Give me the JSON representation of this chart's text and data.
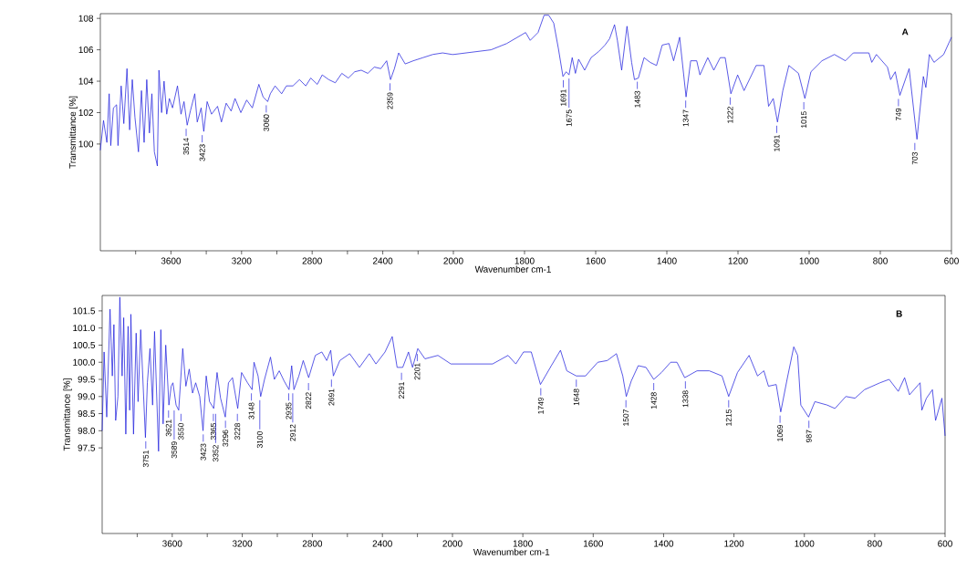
{
  "chart_data": [
    {
      "type": "line",
      "ylabel": "Transmittance [%]",
      "xlim": [
        4000,
        2000
      ],
      "ylim": [
        93.2,
        108.3
      ],
      "xticks": [
        {
          "value": 3800,
          "label": null
        },
        3600,
        {
          "value": 3400,
          "label": null
        },
        3200,
        {
          "value": 3000,
          "label": null
        },
        2800,
        {
          "value": 2600,
          "label": null
        },
        2400,
        {
          "value": 2200,
          "label": null
        }
      ],
      "yticks": [
        100,
        102,
        104,
        106,
        108
      ],
      "x": [
        4000,
        3982,
        3963,
        3950,
        3941,
        3926,
        3908,
        3900,
        3882,
        3867,
        3849,
        3834,
        3819,
        3804,
        3784,
        3767,
        3752,
        3737,
        3722,
        3708,
        3694,
        3677,
        3668,
        3653,
        3639,
        3624,
        3609,
        3591,
        3563,
        3543,
        3526,
        3508,
        3490,
        3465,
        3451,
        3429,
        3414,
        3395,
        3370,
        3336,
        3314,
        3287,
        3259,
        3237,
        3204,
        3171,
        3139,
        3102,
        3078,
        3052,
        3037,
        3010,
        2973,
        2946,
        2909,
        2872,
        2836,
        2808,
        2771,
        2743,
        2706,
        2669,
        2632,
        2595,
        2559,
        2522,
        2485,
        2448,
        2411,
        2378,
        2356,
        2334,
        2310,
        2273,
        2227,
        2172,
        2117,
        2061,
        2006,
        2000
      ],
      "series": [
        {
          "color": "#2222dd",
          "values": [
            99.6,
            101.5,
            100.1,
            103.2,
            99.9,
            102.3,
            102.5,
            99.9,
            103.7,
            101.3,
            104.8,
            100.9,
            104.1,
            101.7,
            99.5,
            103.4,
            100.1,
            104.1,
            100.7,
            103.2,
            99.5,
            98.6,
            104.7,
            102.0,
            104.0,
            101.9,
            102.9,
            102.3,
            103.7,
            101.9,
            102.7,
            101.2,
            102.1,
            103.2,
            101.4,
            102.3,
            100.8,
            102.7,
            101.9,
            102.4,
            101.4,
            102.6,
            102.1,
            102.9,
            102.0,
            102.8,
            102.3,
            103.8,
            103.0,
            102.7,
            103.2,
            103.7,
            103.2,
            103.7,
            103.7,
            104.1,
            103.7,
            104.2,
            103.8,
            104.4,
            104.1,
            103.9,
            104.5,
            104.2,
            104.6,
            104.7,
            104.5,
            104.9,
            104.8,
            105.3,
            104.1,
            104.8,
            105.8,
            105.1,
            105.3,
            105.5,
            105.7,
            105.8,
            105.7,
            105.7
          ]
        }
      ],
      "annotations": [
        {
          "text": "3514",
          "x": 3514,
          "y": 101.2
        },
        {
          "text": "3423",
          "x": 3423,
          "y": 100.8
        },
        {
          "text": "3060",
          "x": 3060,
          "y": 102.7
        },
        {
          "text": "2359",
          "x": 2359,
          "y": 104.1
        }
      ]
    },
    {
      "type": "line",
      "xlabel": "Wavenumber cm-1",
      "tick_labels": "x",
      "xlim": [
        2000,
        600
      ],
      "ylim": [
        93.2,
        108.3
      ],
      "xticks": [
        2000,
        1800,
        1600,
        1400,
        1200,
        1000,
        800,
        600
      ],
      "yticks": [
        100,
        102,
        104,
        106,
        108
      ],
      "x": [
        2000,
        1894,
        1850,
        1797,
        1784,
        1762,
        1745,
        1732,
        1718,
        1705,
        1692,
        1683,
        1675,
        1666,
        1657,
        1648,
        1631,
        1613,
        1591,
        1574,
        1561,
        1547,
        1539,
        1527,
        1512,
        1499,
        1491,
        1480,
        1464,
        1447,
        1429,
        1413,
        1394,
        1381,
        1364,
        1346,
        1333,
        1316,
        1307,
        1285,
        1268,
        1250,
        1236,
        1220,
        1201,
        1183,
        1149,
        1127,
        1114,
        1101,
        1089,
        1074,
        1057,
        1030,
        1012,
        995,
        964,
        929,
        898,
        876,
        832,
        824,
        811,
        780,
        771,
        758,
        745,
        719,
        697,
        679,
        672,
        662,
        649,
        622,
        600
      ],
      "series": [
        {
          "color": "#2222dd",
          "values": [
            105.7,
            106.0,
            106.4,
            107.1,
            106.6,
            107.1,
            108.2,
            108.2,
            107.7,
            106.1,
            104.3,
            104.6,
            104.4,
            105.5,
            104.5,
            105.4,
            104.7,
            105.5,
            105.9,
            106.3,
            106.7,
            107.6,
            106.6,
            104.7,
            107.5,
            105.2,
            104.1,
            104.2,
            105.5,
            105.2,
            105.0,
            106.3,
            106.4,
            105.3,
            106.8,
            103.0,
            105.3,
            105.3,
            104.4,
            105.5,
            104.7,
            105.5,
            105.5,
            103.2,
            104.4,
            103.4,
            105.0,
            105.0,
            102.4,
            102.9,
            101.4,
            103.4,
            105.0,
            104.5,
            102.9,
            104.6,
            105.3,
            105.7,
            105.3,
            105.8,
            105.8,
            105.2,
            105.7,
            104.9,
            104.1,
            104.6,
            103.1,
            104.8,
            100.3,
            104.3,
            103.6,
            105.7,
            105.2,
            105.7,
            106.8
          ]
        }
      ],
      "annotations": [
        "A",
        {
          "text": "1691",
          "x": 1691,
          "y": 104.3
        },
        {
          "text": "1675",
          "x": 1675,
          "y": 104.4
        },
        {
          "text": "1483",
          "x": 1483,
          "y": 104.2
        },
        {
          "text": "1347",
          "x": 1347,
          "y": 103.0
        },
        {
          "text": "1222",
          "x": 1222,
          "y": 103.2
        },
        {
          "text": "1091",
          "x": 1091,
          "y": 101.4
        },
        {
          "text": "1015",
          "x": 1015,
          "y": 102.9
        },
        {
          "text": "749",
          "x": 749,
          "y": 103.1
        },
        {
          "text": "703",
          "x": 703,
          "y": 100.3
        }
      ]
    },
    {
      "type": "line",
      "ylabel": "Transmittance [%]",
      "xlim": [
        4000,
        2000
      ],
      "ylim": [
        95.0,
        101.95
      ],
      "xticks": [
        {
          "value": 3800,
          "label": null
        },
        3600,
        {
          "value": 3400,
          "label": null
        },
        3200,
        {
          "value": 3000,
          "label": null
        },
        2800,
        {
          "value": 2600,
          "label": null
        },
        2400,
        {
          "value": 2200,
          "label": null
        }
      ],
      "yticks": [
        97.5,
        {
          "value": 98,
          "label": "98.0"
        },
        98.5,
        {
          "value": 99,
          "label": "99.0"
        },
        99.5,
        {
          "value": 100,
          "label": "100.0"
        },
        100.5,
        {
          "value": 101,
          "label": "101.0"
        },
        101.5
      ],
      "x": [
        4000,
        3989,
        3974,
        3955,
        3942,
        3933,
        3923,
        3910,
        3899,
        3886,
        3877,
        3865,
        3852,
        3843,
        3836,
        3821,
        3806,
        3795,
        3780,
        3753,
        3742,
        3727,
        3712,
        3701,
        3678,
        3665,
        3652,
        3637,
        3619,
        3606,
        3596,
        3578,
        3563,
        3540,
        3522,
        3503,
        3484,
        3466,
        3443,
        3424,
        3406,
        3387,
        3363,
        3344,
        3324,
        3297,
        3279,
        3256,
        3226,
        3204,
        3170,
        3144,
        3133,
        3110,
        3095,
        3073,
        3039,
        3017,
        2989,
        2961,
        2933,
        2918,
        2905,
        2877,
        2852,
        2821,
        2783,
        2746,
        2718,
        2695,
        2680,
        2643,
        2587,
        2531,
        2475,
        2437,
        2385,
        2344,
        2316,
        2284,
        2251,
        2228,
        2198,
        2157,
        2083,
        2009,
        2000
      ],
      "series": [
        {
          "color": "#2222dd",
          "values": [
            98.0,
            100.3,
            98.4,
            101.55,
            99.6,
            101.1,
            98.3,
            99.0,
            101.9,
            99.6,
            101.3,
            97.9,
            101.05,
            98.6,
            101.4,
            97.9,
            100.85,
            98.85,
            100.95,
            97.8,
            99.4,
            100.4,
            98.75,
            100.9,
            97.4,
            100.95,
            98.2,
            100.5,
            98.75,
            99.3,
            99.4,
            98.75,
            98.6,
            100.4,
            99.3,
            99.8,
            99.1,
            99.4,
            99.0,
            98.0,
            99.6,
            98.85,
            98.65,
            99.7,
            98.95,
            98.4,
            99.4,
            99.55,
            98.65,
            99.7,
            99.4,
            99.2,
            100.0,
            99.6,
            99.0,
            99.5,
            100.15,
            99.5,
            99.75,
            99.45,
            99.2,
            99.9,
            99.2,
            99.6,
            100.05,
            99.55,
            100.2,
            100.3,
            100.05,
            100.35,
            99.6,
            100.05,
            100.25,
            99.85,
            100.25,
            99.95,
            100.3,
            100.75,
            99.85,
            99.85,
            100.3,
            99.85,
            100.4,
            100.1,
            100.2,
            99.95,
            99.95
          ]
        }
      ],
      "annotations": [
        {
          "text": "3751",
          "x": 3751,
          "y": 97.8
        },
        {
          "text": "3621",
          "x": 3621,
          "y": 98.7
        },
        {
          "text": "3589",
          "x": 3589,
          "y": 98.7
        },
        {
          "text": "3550",
          "x": 3550,
          "y": 98.6
        },
        {
          "text": "3423",
          "x": 3423,
          "y": 98.0
        },
        {
          "text": "3365",
          "x": 3365,
          "y": 98.6
        },
        {
          "text": "3352",
          "x": 3352,
          "y": 98.6
        },
        {
          "text": "3296",
          "x": 3296,
          "y": 98.4
        },
        {
          "text": "3228",
          "x": 3228,
          "y": 98.6
        },
        {
          "text": "3148",
          "x": 3148,
          "y": 99.2
        },
        {
          "text": "3100",
          "x": 3100,
          "y": 99.0
        },
        {
          "text": "2935",
          "x": 2935,
          "y": 99.2
        },
        {
          "text": "2912",
          "x": 2912,
          "y": 99.2
        },
        {
          "text": "2822",
          "x": 2822,
          "y": 99.5
        },
        {
          "text": "2691",
          "x": 2691,
          "y": 99.6
        },
        {
          "text": "2291",
          "x": 2291,
          "y": 99.8
        },
        {
          "text": "2201",
          "x": 2201,
          "y": 100.35
        }
      ]
    },
    {
      "type": "line",
      "xlabel": "Wavenumber cm-1",
      "tick_labels": "x",
      "xlim": [
        2000,
        600
      ],
      "ylim": [
        95.0,
        101.95
      ],
      "xticks": [
        2000,
        1800,
        1600,
        1400,
        1200,
        1000,
        800,
        600
      ],
      "yticks": [
        97.5,
        98,
        98.5,
        99,
        99.5,
        100,
        100.5,
        101,
        101.5
      ],
      "x": [
        2000,
        1886,
        1842,
        1820,
        1798,
        1776,
        1750,
        1719,
        1693,
        1675,
        1648,
        1622,
        1587,
        1560,
        1534,
        1516,
        1506,
        1492,
        1472,
        1450,
        1428,
        1406,
        1380,
        1362,
        1340,
        1305,
        1270,
        1234,
        1215,
        1190,
        1157,
        1133,
        1115,
        1102,
        1080,
        1067,
        1049,
        1030,
        1019,
        1010,
        988,
        970,
        935,
        913,
        882,
        856,
        829,
        785,
        759,
        733,
        715,
        701,
        671,
        666,
        653,
        636,
        627,
        609,
        600
      ],
      "series": [
        {
          "color": "#2222dd",
          "values": [
            99.95,
            99.95,
            100.2,
            99.95,
            100.3,
            100.3,
            99.35,
            99.9,
            100.35,
            99.75,
            99.6,
            99.6,
            100.0,
            100.05,
            100.25,
            99.6,
            99.0,
            99.45,
            99.9,
            99.85,
            99.5,
            99.7,
            100.0,
            100.0,
            99.55,
            99.75,
            99.75,
            99.6,
            99.0,
            99.7,
            100.2,
            99.6,
            99.75,
            99.3,
            99.35,
            98.55,
            99.5,
            100.45,
            100.2,
            98.75,
            98.4,
            98.85,
            98.75,
            98.65,
            99.0,
            98.95,
            99.2,
            99.4,
            99.5,
            99.15,
            99.55,
            99.05,
            99.4,
            98.6,
            98.95,
            99.2,
            98.3,
            98.95,
            97.85
          ]
        }
      ],
      "annotations": [
        "B",
        {
          "text": "1749",
          "x": 1749,
          "y": 99.35
        },
        {
          "text": "1648",
          "x": 1648,
          "y": 99.6
        },
        {
          "text": "1507",
          "x": 1507,
          "y": 99.0
        },
        {
          "text": "1428",
          "x": 1428,
          "y": 99.5
        },
        {
          "text": "1338",
          "x": 1338,
          "y": 99.55
        },
        {
          "text": "1215",
          "x": 1215,
          "y": 99.0
        },
        {
          "text": "1069",
          "x": 1069,
          "y": 98.55
        },
        {
          "text": "987",
          "x": 987,
          "y": 98.4
        }
      ]
    }
  ]
}
